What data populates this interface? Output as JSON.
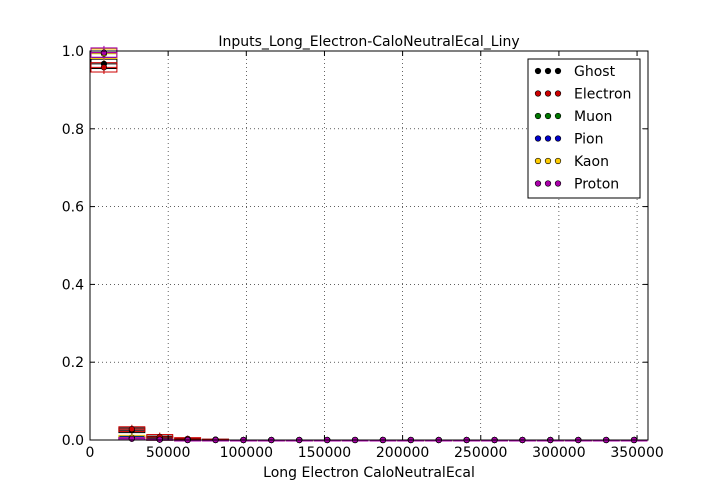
{
  "chart_data": {
    "type": "scatter",
    "title": "Inputs_Long_Electron-CaloNeutralEcal_Liny",
    "xlabel": "Long Electron CaloNeutralEcal",
    "ylabel": "",
    "xlim": [
      0,
      357000
    ],
    "ylim": [
      0,
      1.0
    ],
    "xticks": [
      0,
      50000,
      100000,
      150000,
      200000,
      250000,
      300000,
      350000
    ],
    "xtick_labels": [
      "0",
      "50000",
      "100000",
      "150000",
      "200000",
      "250000",
      "300000",
      "350000"
    ],
    "yticks": [
      0.0,
      0.2,
      0.4,
      0.6,
      0.8,
      1.0
    ],
    "ytick_labels": [
      "0.0",
      "0.2",
      "0.4",
      "0.6",
      "0.8",
      "1.0"
    ],
    "grid": true,
    "legend_position": "top-right",
    "bin_width": 17850,
    "x": [
      8925,
      26775,
      44625,
      62475,
      80325,
      98175,
      116025,
      133875,
      151725,
      169575,
      187425,
      205275,
      223125,
      240975,
      258825,
      276675,
      294525,
      312375,
      330225,
      348075
    ],
    "series": [
      {
        "name": "Ghost",
        "color": "#000000",
        "values": [
          0.967,
          0.025,
          0.005,
          0.002,
          0.001,
          0,
          0,
          0,
          0,
          0,
          0,
          0,
          0,
          0,
          0,
          0,
          0,
          0,
          0,
          0
        ]
      },
      {
        "name": "Electron",
        "color": "#cc0000",
        "values": [
          0.958,
          0.028,
          0.008,
          0.003,
          0.001,
          0,
          0,
          0,
          0,
          0,
          0,
          0,
          0,
          0,
          0,
          0,
          0,
          0,
          0,
          0
        ]
      },
      {
        "name": "Muon",
        "color": "#007700",
        "values": [
          0.995,
          0.004,
          0.001,
          0,
          0,
          0,
          0,
          0,
          0,
          0,
          0,
          0,
          0,
          0,
          0,
          0,
          0,
          0,
          0,
          0
        ]
      },
      {
        "name": "Pion",
        "color": "#0000cc",
        "values": [
          0.994,
          0.005,
          0.001,
          0,
          0,
          0,
          0,
          0,
          0,
          0,
          0,
          0,
          0,
          0,
          0,
          0,
          0,
          0,
          0,
          0
        ]
      },
      {
        "name": "Kaon",
        "color": "#ffcc00",
        "values": [
          0.993,
          0.006,
          0.001,
          0,
          0,
          0,
          0,
          0,
          0,
          0,
          0,
          0,
          0,
          0,
          0,
          0,
          0,
          0,
          0,
          0
        ]
      },
      {
        "name": "Proton",
        "color": "#aa00aa",
        "values": [
          0.996,
          0.003,
          0.001,
          0,
          0,
          0,
          0,
          0,
          0,
          0,
          0,
          0,
          0,
          0,
          0,
          0,
          0,
          0,
          0,
          0
        ]
      }
    ]
  }
}
